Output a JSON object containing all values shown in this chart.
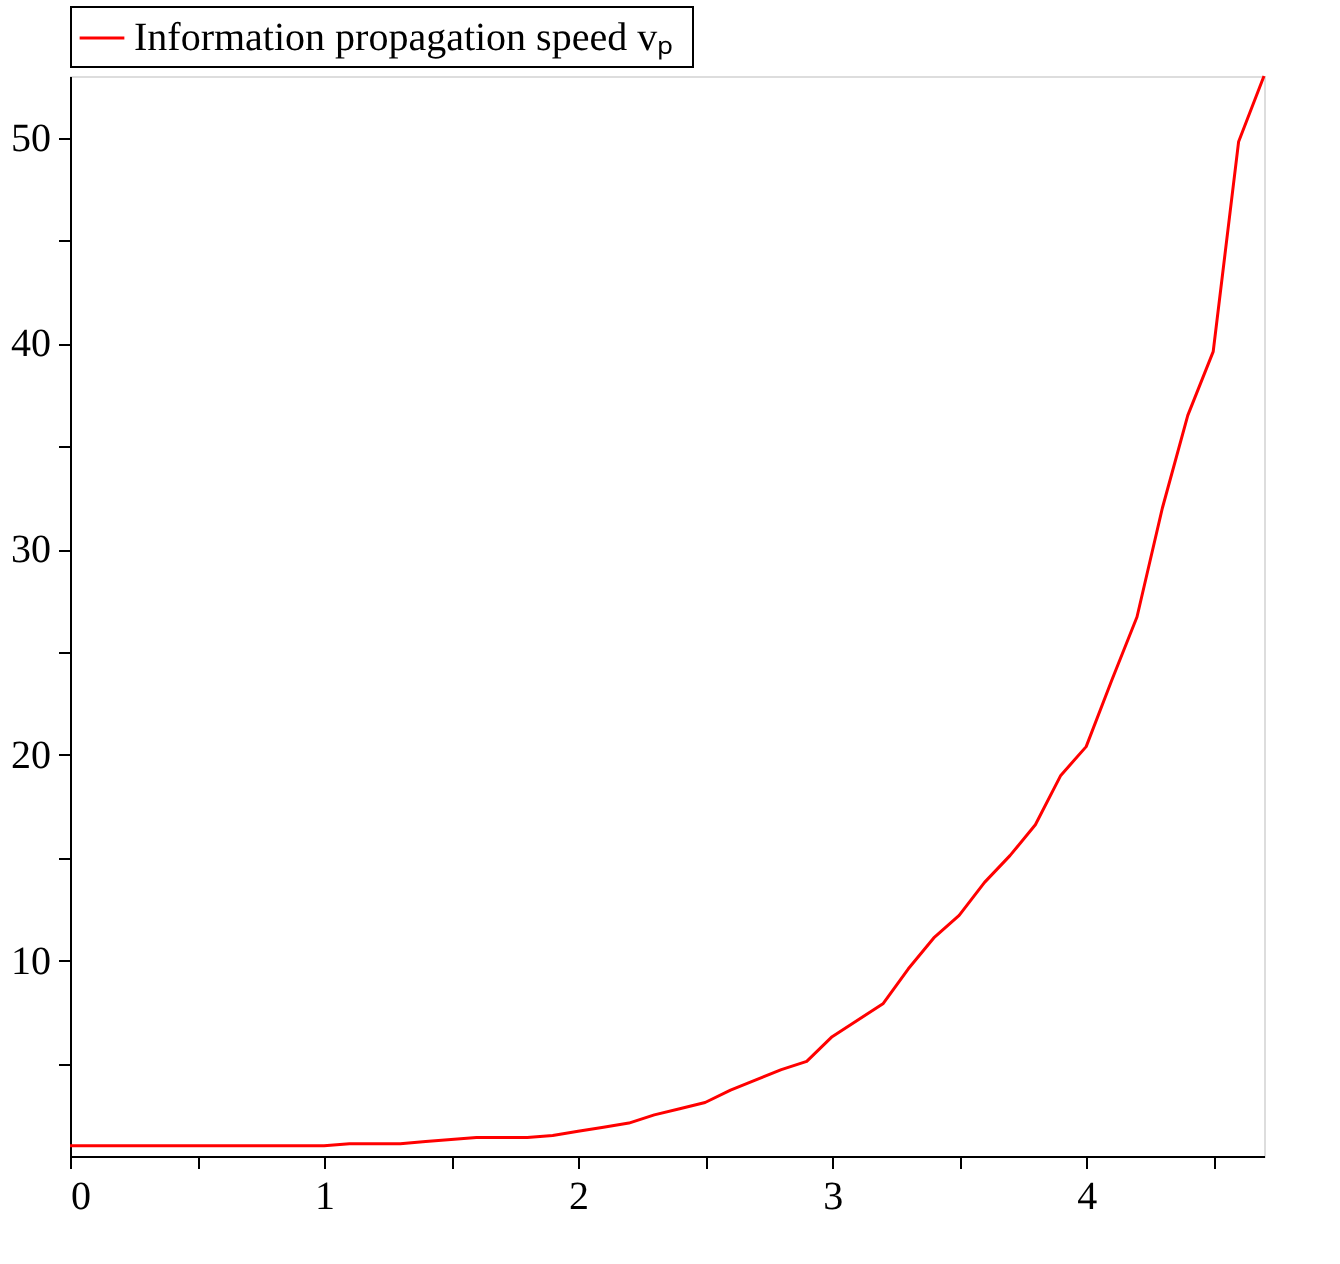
{
  "chart_data": {
    "type": "line",
    "x": [
      0,
      0.1,
      0.2,
      0.3,
      0.4,
      0.5,
      0.6,
      0.7,
      0.8,
      0.9,
      1.0,
      1.1,
      1.2,
      1.3,
      1.4,
      1.5,
      1.6,
      1.7,
      1.8,
      1.9,
      2.0,
      2.1,
      2.2,
      2.3,
      2.4,
      2.5,
      2.6,
      2.7,
      2.8,
      2.9,
      3.0,
      3.1,
      3.2,
      3.3,
      3.4,
      3.5,
      3.6,
      3.7,
      3.8,
      3.9,
      4.0,
      4.1,
      4.2,
      4.3,
      4.4,
      4.5,
      4.6,
      4.7
    ],
    "series": [
      {
        "name": "Information propagation speed  vₚ",
        "color": "#ff0000",
        "values": [
          1.0,
          1.0,
          1.0,
          1.0,
          1.0,
          1.0,
          1.0,
          1.0,
          1.0,
          1.0,
          1.0,
          1.1,
          1.1,
          1.1,
          1.2,
          1.3,
          1.4,
          1.4,
          1.4,
          1.5,
          1.7,
          1.9,
          2.1,
          2.5,
          2.8,
          3.1,
          3.7,
          4.2,
          4.7,
          5.1,
          6.3,
          7.1,
          7.9,
          9.6,
          11.1,
          12.2,
          13.8,
          15.1,
          16.6,
          19.0,
          20.4,
          23.6,
          26.7,
          32.0,
          36.5,
          39.6,
          49.8,
          53.0
        ]
      }
    ],
    "xlim": [
      0,
      4.7
    ],
    "ylim": [
      0.5,
      53
    ],
    "xticks": [
      0,
      {
        "value": 0.5,
        "label": null
      },
      1,
      {
        "value": 1.5,
        "label": null
      },
      2,
      {
        "value": 2.5,
        "label": null
      },
      3,
      {
        "value": 3.5,
        "label": null
      },
      4,
      {
        "value": 4.5,
        "label": null
      }
    ],
    "yticks": [
      {
        "value": 5,
        "label": null
      },
      10,
      {
        "value": 15,
        "label": null
      },
      20,
      {
        "value": 25,
        "label": null
      },
      30,
      {
        "value": 35,
        "label": null
      },
      40,
      {
        "value": 45,
        "label": null
      },
      50
    ],
    "grid": false,
    "legend": "top",
    "line_style": "solid",
    "marker": "none"
  }
}
